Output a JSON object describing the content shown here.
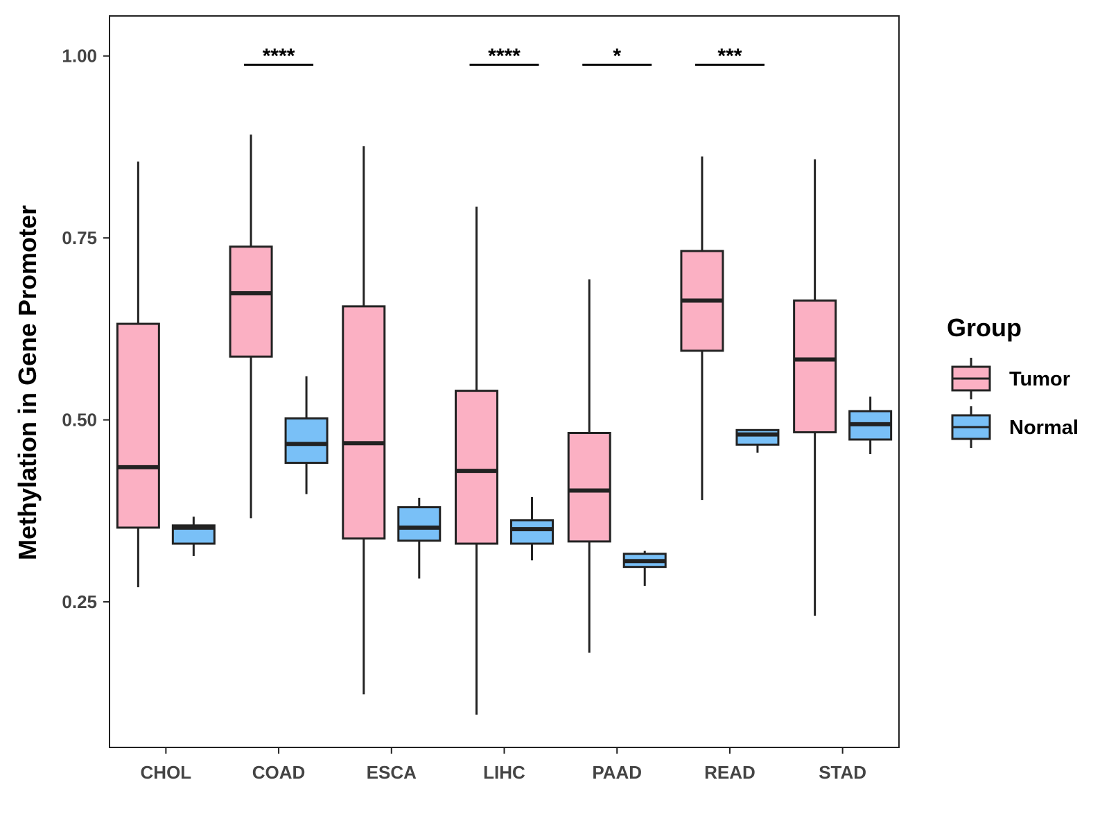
{
  "chart_data": {
    "type": "boxplot",
    "title": "",
    "xlabel": "",
    "ylabel": "Methylation in Gene Promoter",
    "ylim": [
      0.05,
      1.055
    ],
    "yticks": [
      0.25,
      0.5,
      0.75,
      1.0
    ],
    "ytick_labels": [
      "0.25",
      "0.50",
      "0.75",
      "1.00"
    ],
    "grid": false,
    "categories": [
      "CHOL",
      "COAD",
      "ESCA",
      "LIHC",
      "PAAD",
      "READ",
      "STAD"
    ],
    "legend": {
      "title": "Group",
      "position": "right",
      "entries": [
        {
          "name": "Tumor",
          "color": "#FBB0C3"
        },
        {
          "name": "Normal",
          "color": "#79C0F7"
        }
      ]
    },
    "series": [
      {
        "name": "Tumor",
        "color": "#FBB0C3",
        "boxes": [
          {
            "min": 0.27,
            "q1": 0.352,
            "median": 0.435,
            "q3": 0.632,
            "max": 0.855
          },
          {
            "min": 0.365,
            "q1": 0.587,
            "median": 0.674,
            "q3": 0.738,
            "max": 0.892
          },
          {
            "min": 0.123,
            "q1": 0.337,
            "median": 0.468,
            "q3": 0.656,
            "max": 0.876
          },
          {
            "min": 0.095,
            "q1": 0.33,
            "median": 0.43,
            "q3": 0.54,
            "max": 0.793
          },
          {
            "min": 0.18,
            "q1": 0.333,
            "median": 0.403,
            "q3": 0.482,
            "max": 0.693
          },
          {
            "min": 0.39,
            "q1": 0.595,
            "median": 0.664,
            "q3": 0.732,
            "max": 0.862
          },
          {
            "min": 0.231,
            "q1": 0.483,
            "median": 0.583,
            "q3": 0.664,
            "max": 0.858
          }
        ]
      },
      {
        "name": "Normal",
        "color": "#79C0F7",
        "boxes": [
          {
            "min": 0.313,
            "q1": 0.33,
            "median": 0.352,
            "q3": 0.355,
            "max": 0.367
          },
          {
            "min": 0.398,
            "q1": 0.441,
            "median": 0.467,
            "q3": 0.502,
            "max": 0.56
          },
          {
            "min": 0.282,
            "q1": 0.334,
            "median": 0.352,
            "q3": 0.38,
            "max": 0.393
          },
          {
            "min": 0.307,
            "q1": 0.33,
            "median": 0.35,
            "q3": 0.362,
            "max": 0.394
          },
          {
            "min": 0.272,
            "q1": 0.298,
            "median": 0.306,
            "q3": 0.316,
            "max": 0.32
          },
          {
            "min": 0.455,
            "q1": 0.466,
            "median": 0.48,
            "q3": 0.486,
            "max": 0.486
          },
          {
            "min": 0.453,
            "q1": 0.473,
            "median": 0.494,
            "q3": 0.512,
            "max": 0.532
          }
        ]
      }
    ],
    "annotations": [
      {
        "category": "COAD",
        "text": "****",
        "y": 0.988
      },
      {
        "category": "LIHC",
        "text": "****",
        "y": 0.988
      },
      {
        "category": "PAAD",
        "text": "*",
        "y": 0.988
      },
      {
        "category": "READ",
        "text": "***",
        "y": 0.988
      }
    ]
  }
}
